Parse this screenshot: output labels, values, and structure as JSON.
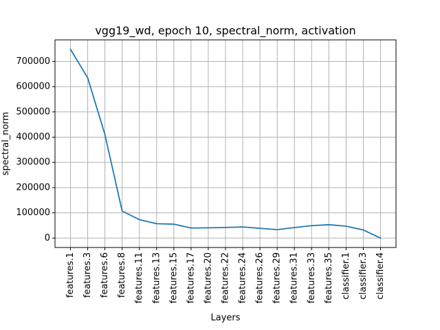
{
  "chart_data": {
    "type": "line",
    "title": "vgg19_wd, epoch 10, spectral_norm, activation",
    "xlabel": "Layers",
    "ylabel": "spectral_norm",
    "categories": [
      "features.1",
      "features.3",
      "features.6",
      "features.8",
      "features.11",
      "features.13",
      "features.15",
      "features.17",
      "features.20",
      "features.22",
      "features.24",
      "features.26",
      "features.29",
      "features.31",
      "features.33",
      "features.35",
      "classifier.1",
      "classifier.3",
      "classifier.4"
    ],
    "series": [
      {
        "values": [
          748000,
          635000,
          410000,
          107000,
          73000,
          57000,
          55000,
          40000,
          40500,
          42000,
          44000,
          38500,
          33500,
          41500,
          49000,
          53000,
          47000,
          32000,
          0
        ],
        "color": "#1f77b4"
      }
    ],
    "yticks": [
      0,
      100000,
      200000,
      300000,
      400000,
      500000,
      600000,
      700000
    ],
    "ylim": [
      -37400,
      785400
    ],
    "grid": true
  }
}
